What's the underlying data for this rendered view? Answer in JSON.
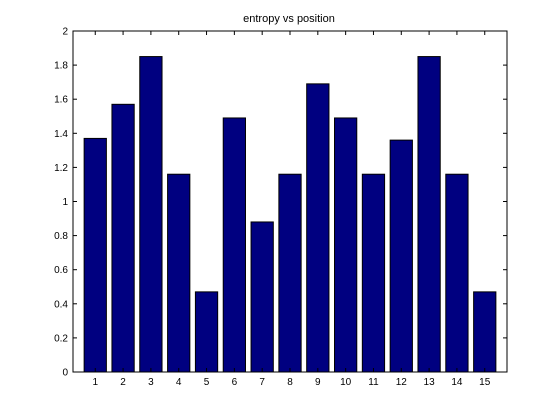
{
  "chart_data": {
    "type": "bar",
    "title": "entropy vs position",
    "xlabel": "",
    "ylabel": "",
    "categories": [
      "1",
      "2",
      "3",
      "4",
      "5",
      "6",
      "7",
      "8",
      "9",
      "10",
      "11",
      "12",
      "13",
      "14",
      "15"
    ],
    "values": [
      1.37,
      1.57,
      1.85,
      1.16,
      0.47,
      1.49,
      0.88,
      1.16,
      1.69,
      1.49,
      1.16,
      1.36,
      1.85,
      1.16,
      0.47
    ],
    "ylim": [
      0,
      2
    ],
    "xlim": [
      0.2,
      15.8
    ],
    "yticks": [
      "0",
      "0.2",
      "0.4",
      "0.6",
      "0.8",
      "1",
      "1.2",
      "1.4",
      "1.6",
      "1.8",
      "2"
    ],
    "grid": false,
    "bar_color": "#000080",
    "bar_edge_color": "#000000"
  }
}
